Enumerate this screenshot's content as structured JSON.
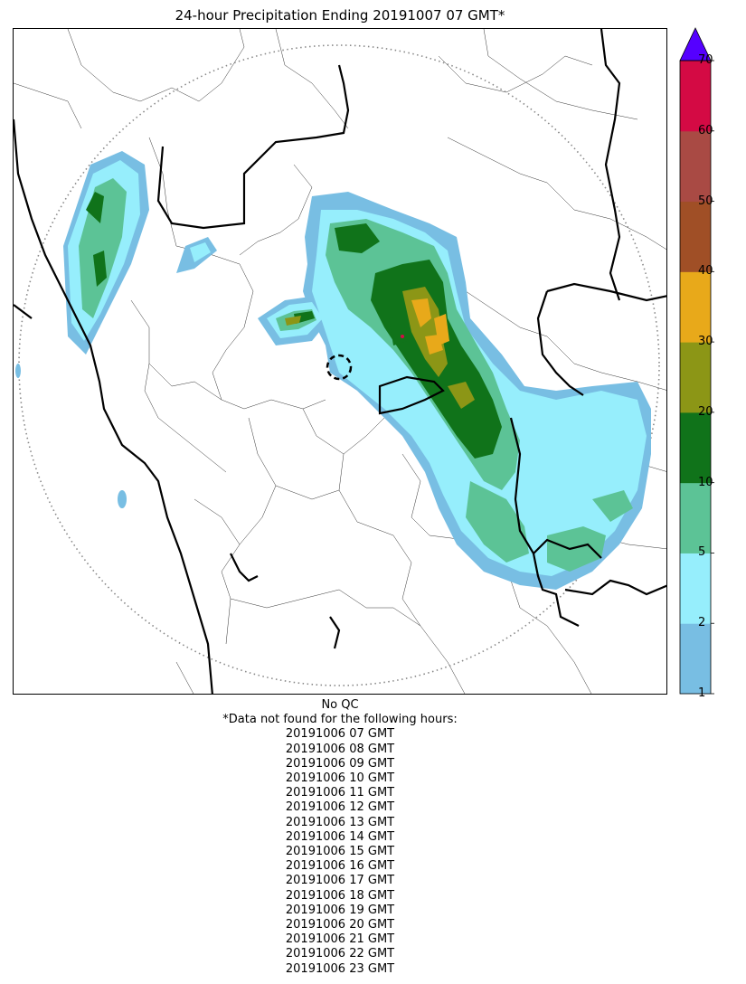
{
  "title": "24-hour Precipitation Ending 20191007 07 GMT*",
  "map": {
    "type": "radar precipitation accumulation map",
    "shows_radar_range_ring": true,
    "shows_radar_location_marker": true
  },
  "colorbar": {
    "ticks": [
      "1",
      "2",
      "5",
      "10",
      "20",
      "30",
      "40",
      "50",
      "60",
      "70"
    ],
    "bins": [
      {
        "range": "1-2",
        "color": "#78bee3"
      },
      {
        "range": "2-5",
        "color": "#96eefc"
      },
      {
        "range": "5-10",
        "color": "#5cc396"
      },
      {
        "range": "10-20",
        "color": "#10731a"
      },
      {
        "range": "20-30",
        "color": "#8c9616"
      },
      {
        "range": "30-40",
        "color": "#e8a91a"
      },
      {
        "range": "40-50",
        "color": "#a04f26"
      },
      {
        "range": "50-60",
        "color": "#a94a44"
      },
      {
        "range": "60-70",
        "color": "#d40a44"
      },
      {
        "range": ">70",
        "color": "#5500ff"
      }
    ]
  },
  "notes": {
    "qc": "No QC",
    "missing_header": "*Data not found for the following hours:",
    "missing_hours": [
      "20191006 07 GMT",
      "20191006 08 GMT",
      "20191006 09 GMT",
      "20191006 10 GMT",
      "20191006 11 GMT",
      "20191006 12 GMT",
      "20191006 13 GMT",
      "20191006 14 GMT",
      "20191006 15 GMT",
      "20191006 16 GMT",
      "20191006 17 GMT",
      "20191006 18 GMT",
      "20191006 19 GMT",
      "20191006 20 GMT",
      "20191006 21 GMT",
      "20191006 22 GMT",
      "20191006 23 GMT"
    ]
  }
}
